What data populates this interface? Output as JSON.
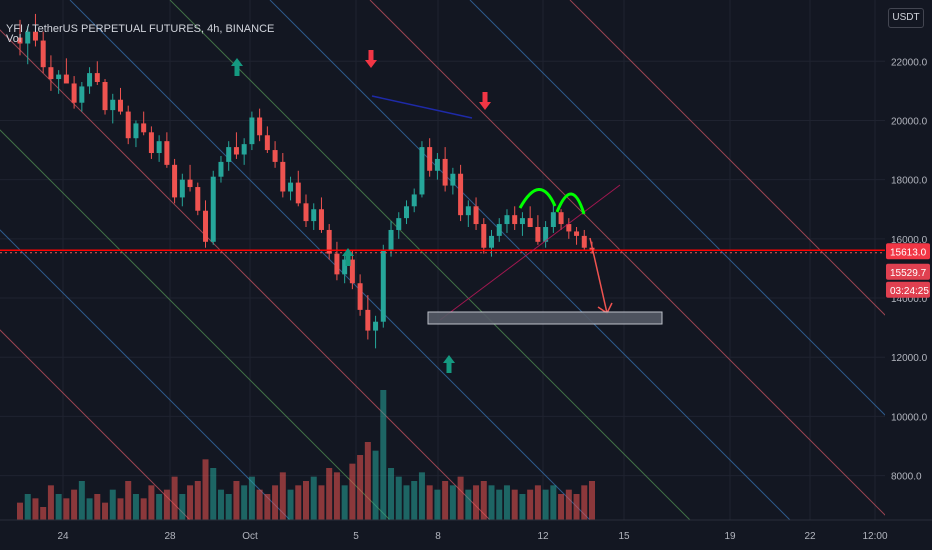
{
  "header": {
    "symbol_title": "YFI / TetherUS PERPETUAL FUTURES, 4h, BINANCE",
    "volume_label": "Vol",
    "currency_button": "USDT"
  },
  "colors": {
    "background": "#131722",
    "up": "#26a69a",
    "down": "#ef5350",
    "price_line": "#ff0000",
    "pattern": "#00ff00",
    "arrow_up": "#159980",
    "arrow_down": "#f23645"
  },
  "chart_data": {
    "type": "candlestick",
    "y_axis": {
      "min": 6500,
      "max": 23800,
      "ticks": [
        22000,
        20000,
        18000,
        16000,
        14000,
        12000,
        10000,
        8000
      ],
      "tick_labels": [
        "22000.0",
        "20000.0",
        "18000.0",
        "16000.0",
        "14000.0",
        "12000.0",
        "10000.0",
        "8000.0"
      ]
    },
    "x_axis": {
      "ticks": [
        "24",
        "28",
        "Oct",
        "5",
        "8",
        "12",
        "15",
        "19",
        "22",
        "12:00"
      ]
    },
    "price_markers": {
      "last_price": "15613.0",
      "second_price": "15529.7",
      "countdown": "03:24:25"
    },
    "candles_ohlc": [
      [
        22800,
        23400,
        22200,
        22600
      ],
      [
        22600,
        23200,
        21900,
        23000
      ],
      [
        23000,
        23600,
        22500,
        22700
      ],
      [
        22700,
        23000,
        21600,
        21800
      ],
      [
        21800,
        22200,
        21000,
        21400
      ],
      [
        21400,
        21700,
        20900,
        21550
      ],
      [
        21550,
        22100,
        21300,
        21250
      ],
      [
        21250,
        21500,
        20400,
        20600
      ],
      [
        20600,
        21300,
        20300,
        21150
      ],
      [
        21150,
        21800,
        20900,
        21600
      ],
      [
        21600,
        22000,
        21200,
        21300
      ],
      [
        21300,
        21400,
        20200,
        20350
      ],
      [
        20350,
        20900,
        19900,
        20700
      ],
      [
        20700,
        21100,
        20200,
        20300
      ],
      [
        20300,
        20500,
        19200,
        19400
      ],
      [
        19400,
        20000,
        19100,
        19900
      ],
      [
        19900,
        20300,
        19500,
        19600
      ],
      [
        19600,
        19800,
        18700,
        18900
      ],
      [
        18900,
        19500,
        18600,
        19300
      ],
      [
        19300,
        19600,
        18400,
        18500
      ],
      [
        18500,
        18700,
        17200,
        17400
      ],
      [
        17400,
        18200,
        17100,
        18000
      ],
      [
        18000,
        18500,
        17600,
        17750
      ],
      [
        17750,
        17900,
        16800,
        16950
      ],
      [
        16950,
        17300,
        15700,
        15900
      ],
      [
        15900,
        18300,
        15800,
        18100
      ],
      [
        18100,
        18800,
        17900,
        18600
      ],
      [
        18600,
        19300,
        18300,
        19100
      ],
      [
        19100,
        19600,
        18700,
        18850
      ],
      [
        18850,
        19400,
        18500,
        19200
      ],
      [
        19200,
        20300,
        19000,
        20100
      ],
      [
        20100,
        20400,
        19300,
        19500
      ],
      [
        19500,
        19800,
        18900,
        19000
      ],
      [
        19000,
        19300,
        18400,
        18600
      ],
      [
        18600,
        18900,
        17400,
        17600
      ],
      [
        17600,
        18100,
        17300,
        17900
      ],
      [
        17900,
        18300,
        17100,
        17200
      ],
      [
        17200,
        17500,
        16400,
        16600
      ],
      [
        16600,
        17200,
        16300,
        17000
      ],
      [
        17000,
        17400,
        16200,
        16300
      ],
      [
        16300,
        16500,
        15300,
        15500
      ],
      [
        15500,
        15900,
        14600,
        14800
      ],
      [
        14800,
        15500,
        14500,
        15300
      ],
      [
        15300,
        15600,
        14300,
        14500
      ],
      [
        14500,
        14800,
        13400,
        13600
      ],
      [
        13600,
        14100,
        12600,
        12900
      ],
      [
        12900,
        13400,
        12300,
        13200
      ],
      [
        13200,
        15800,
        13000,
        15600
      ],
      [
        15600,
        16600,
        15400,
        16300
      ],
      [
        16300,
        16900,
        16000,
        16700
      ],
      [
        16700,
        17300,
        16500,
        17100
      ],
      [
        17100,
        17700,
        16900,
        17500
      ],
      [
        17500,
        19300,
        17400,
        19100
      ],
      [
        19100,
        19400,
        18100,
        18300
      ],
      [
        18300,
        18900,
        18000,
        18700
      ],
      [
        18700,
        19100,
        17600,
        17800
      ],
      [
        17800,
        18400,
        17500,
        18200
      ],
      [
        18200,
        18500,
        16600,
        16800
      ],
      [
        16800,
        17300,
        16400,
        17100
      ],
      [
        17100,
        17400,
        16300,
        16500
      ],
      [
        16500,
        16700,
        15500,
        15700
      ],
      [
        15700,
        16300,
        15400,
        16100
      ],
      [
        16100,
        16700,
        15900,
        16500
      ],
      [
        16500,
        17000,
        16200,
        16800
      ],
      [
        16800,
        17100,
        16300,
        16500
      ],
      [
        16500,
        16900,
        16100,
        16700
      ],
      [
        16700,
        17100,
        16400,
        16400
      ],
      [
        16400,
        16800,
        15800,
        15900
      ],
      [
        15900,
        16600,
        15700,
        16400
      ],
      [
        16400,
        17200,
        16200,
        16900
      ],
      [
        16900,
        17000,
        16300,
        16500
      ],
      [
        16500,
        16700,
        16000,
        16250
      ],
      [
        16250,
        16400,
        15800,
        16100
      ],
      [
        16100,
        16300,
        15600,
        15700
      ],
      [
        15700,
        15900,
        15500,
        15613
      ]
    ],
    "volume_heights": [
      4,
      6,
      5,
      3,
      8,
      6,
      5,
      7,
      9,
      5,
      6,
      4,
      7,
      5,
      9,
      6,
      5,
      8,
      6,
      7,
      10,
      6,
      8,
      9,
      14,
      12,
      7,
      6,
      9,
      8,
      10,
      7,
      6,
      8,
      11,
      7,
      8,
      9,
      10,
      8,
      12,
      11,
      8,
      13,
      15,
      18,
      16,
      30,
      12,
      10,
      8,
      9,
      11,
      8,
      7,
      9,
      8,
      10,
      7,
      8,
      9,
      8,
      7,
      8,
      7,
      6,
      7,
      8,
      7,
      8,
      6,
      7,
      6,
      8,
      9
    ],
    "annotations": {
      "green_arrows_up": 3,
      "red_arrows_down": 2,
      "target_zone": [
        13100,
        12900
      ]
    }
  }
}
